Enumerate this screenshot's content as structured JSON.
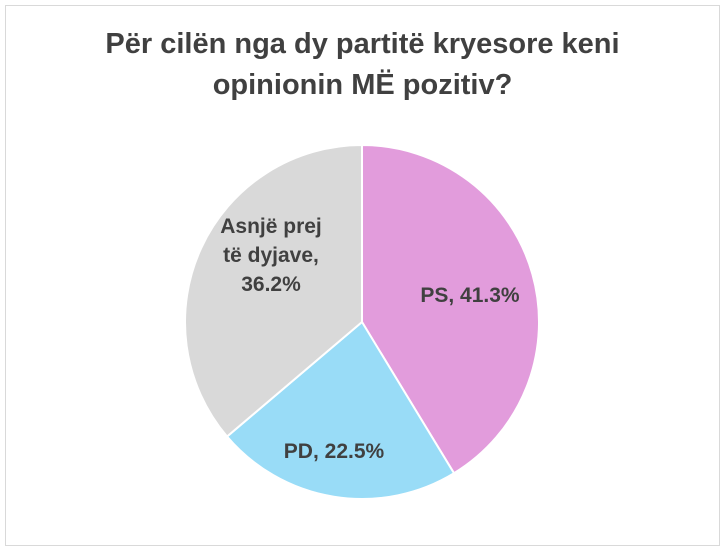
{
  "chart_data": {
    "type": "pie",
    "title_lines": [
      "Për cilën nga dy partitë kryesore keni",
      "opinionin MË pozitiv?"
    ],
    "slices": [
      {
        "name": "PS",
        "value": 41.3,
        "color": "#e29cdc",
        "label_lines": [
          "PS, 41.3%"
        ]
      },
      {
        "name": "PD",
        "value": 22.5,
        "color": "#99dcf7",
        "label_lines": [
          "PD, 22.5%"
        ]
      },
      {
        "name": "Asnjë prej të dyjave",
        "value": 36.2,
        "color": "#d9d9d9",
        "label_lines": [
          "Asnjë prej",
          "të dyjave,",
          "36.2%"
        ]
      }
    ],
    "start_angle_deg": 0,
    "direction": "clockwise",
    "slice_border_color": "#ffffff",
    "legend": "none"
  }
}
